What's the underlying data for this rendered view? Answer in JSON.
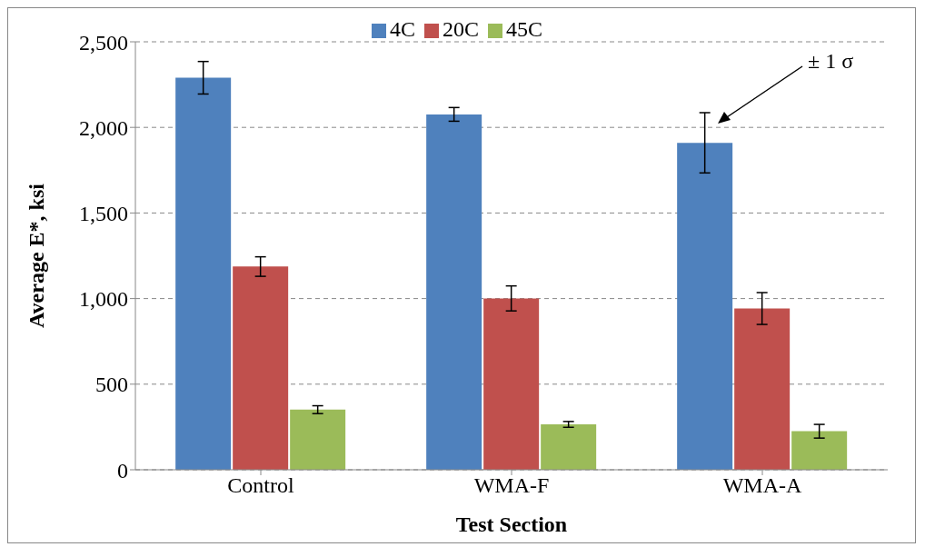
{
  "chart_data": {
    "type": "bar",
    "xlabel": "Test Section",
    "ylabel": "Average E*, ksi",
    "categories": [
      "Control",
      "WMA-F",
      "WMA-A"
    ],
    "series": [
      {
        "name": "4C",
        "color": "#4f81bd",
        "values": [
          2290,
          2076,
          1910
        ],
        "errors": [
          95,
          40,
          176
        ]
      },
      {
        "name": "20C",
        "color": "#c0504d",
        "values": [
          1187,
          1001,
          942
        ],
        "errors": [
          57,
          73,
          93
        ]
      },
      {
        "name": "45C",
        "color": "#9bbb59",
        "values": [
          351,
          265,
          225
        ],
        "errors": [
          23,
          17,
          40
        ]
      }
    ],
    "ylim": [
      0,
      2500
    ],
    "yticks": [
      0,
      {
        "value": 500,
        "label": "500"
      },
      {
        "value": 1000,
        "label": "1,000"
      },
      {
        "value": 1500,
        "label": "1,500"
      },
      {
        "value": 2000,
        "label": "2,000"
      },
      {
        "value": 2500,
        "label": "2,500"
      }
    ],
    "grid": "y",
    "legend": "top",
    "annotations": [
      "± 1 σ"
    ]
  }
}
